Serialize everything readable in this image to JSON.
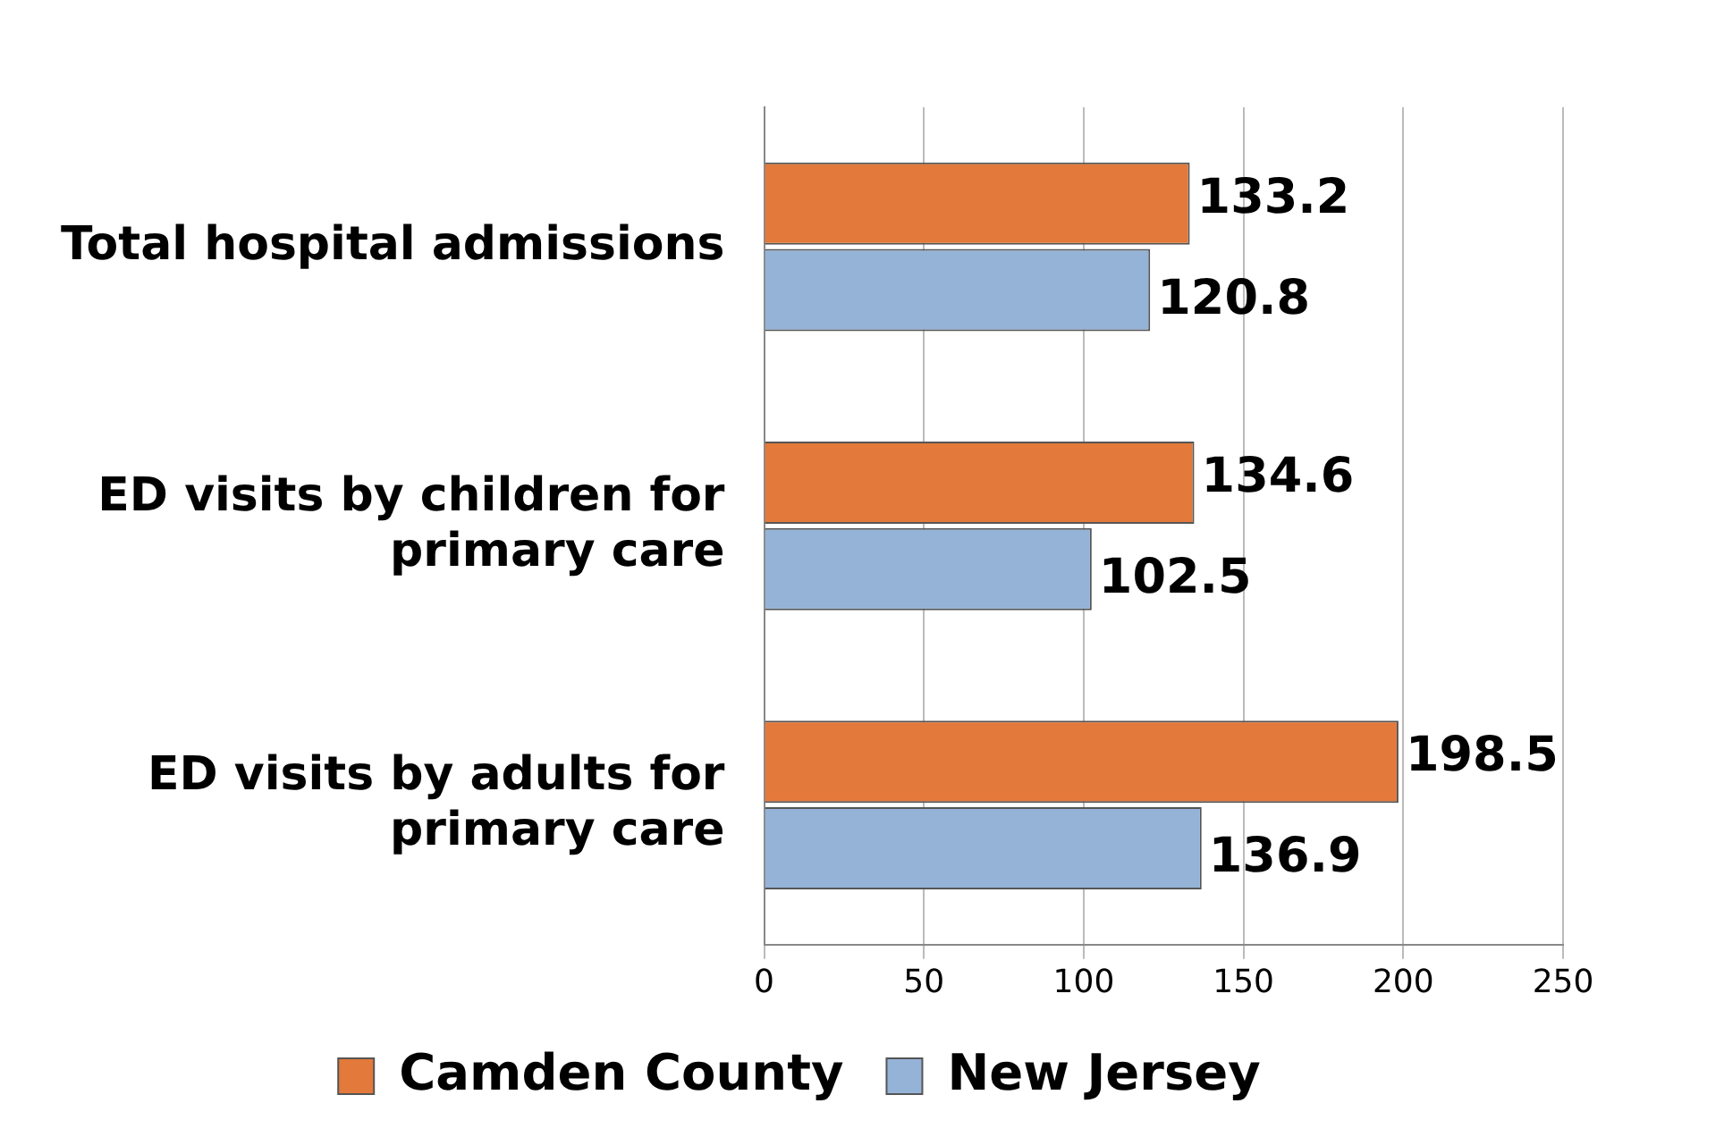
{
  "chart_data": {
    "type": "bar",
    "orientation": "horizontal",
    "categories": [
      "Total hospital admissions",
      "ED visits by children for primary care",
      "ED visits by adults for primary care"
    ],
    "series": [
      {
        "name": "Camden County",
        "color": "#e3793a",
        "values": [
          133.2,
          134.6,
          198.5
        ]
      },
      {
        "name": "New Jersey",
        "color": "#95b3d7",
        "values": [
          120.8,
          102.5,
          136.9
        ]
      }
    ],
    "xlim": [
      0,
      250
    ],
    "xticks": [
      0,
      50,
      100,
      150,
      200,
      250
    ],
    "grid": "x",
    "legend": "bottom",
    "data_labels": true
  }
}
